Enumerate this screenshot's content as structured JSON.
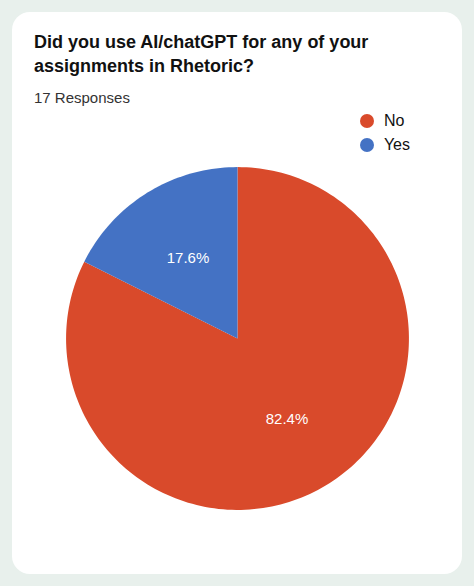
{
  "chart_data": {
    "type": "pie",
    "title": "Did you use AI/chatGPT for any of your\nassignments in Rhetoric?",
    "subtitle": "17 Responses",
    "categories": [
      "No",
      "Yes"
    ],
    "values": [
      82.4,
      17.6
    ],
    "value_labels": [
      "82.4%",
      "17.6%"
    ],
    "colors": [
      "#D94A2B",
      "#4472C4"
    ],
    "data_labels": true,
    "legend": "upper right"
  }
}
